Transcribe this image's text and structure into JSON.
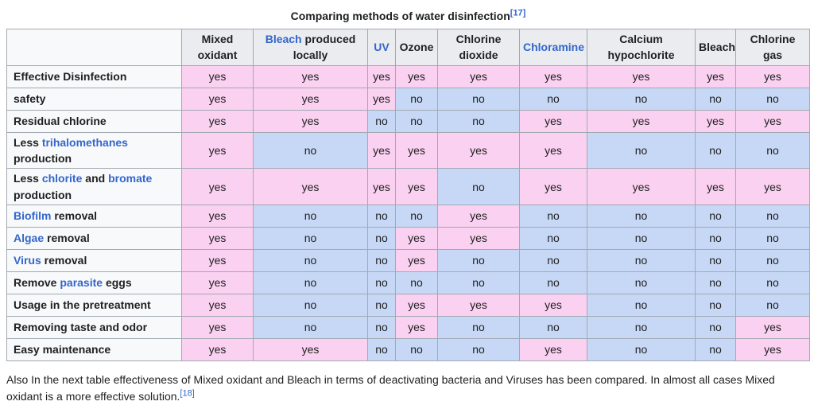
{
  "colors": {
    "yes_bg": "#fad1f0",
    "no_bg": "#c7d8f6",
    "header_bg": "#eaecf0",
    "label_bg": "#f8f9fa",
    "border": "#a2a9b1",
    "text": "#202122",
    "link": "#3366cc"
  },
  "title": {
    "segments": [
      {
        "t": "Comparing methods of water disinfection"
      },
      {
        "t": "[17]",
        "link": true,
        "sup": true
      }
    ]
  },
  "table": {
    "value_yes": "yes",
    "value_no": "no",
    "columns": [
      {
        "id": "mixed-oxidant",
        "segments": [
          {
            "t": "Mixed oxidant"
          }
        ]
      },
      {
        "id": "bleach-produced-locally",
        "segments": [
          {
            "t": "Bleach",
            "link": true
          },
          {
            "t": " produced locally"
          }
        ]
      },
      {
        "id": "uv",
        "segments": [
          {
            "t": "UV",
            "link": true
          }
        ]
      },
      {
        "id": "ozone",
        "segments": [
          {
            "t": "Ozone"
          }
        ]
      },
      {
        "id": "chlorine-dioxide",
        "segments": [
          {
            "t": "Chlorine dioxide"
          }
        ]
      },
      {
        "id": "chloramine",
        "segments": [
          {
            "t": "Chloramine",
            "link": true
          }
        ]
      },
      {
        "id": "calcium-hypochlorite",
        "segments": [
          {
            "t": "Calcium hypochlorite"
          }
        ]
      },
      {
        "id": "bleach",
        "segments": [
          {
            "t": "Bleach"
          }
        ]
      },
      {
        "id": "chlorine-gas",
        "segments": [
          {
            "t": "Chlorine gas"
          }
        ]
      }
    ],
    "rows": [
      {
        "id": "effective-disinfection",
        "label_segments": [
          {
            "t": "Effective Disinfection"
          }
        ],
        "values": [
          "yes",
          "yes",
          "yes",
          "yes",
          "yes",
          "yes",
          "yes",
          "yes",
          "yes"
        ]
      },
      {
        "id": "safety",
        "label_segments": [
          {
            "t": "safety"
          }
        ],
        "values": [
          "yes",
          "yes",
          "yes",
          "no",
          "no",
          "no",
          "no",
          "no",
          "no"
        ]
      },
      {
        "id": "residual-chlorine",
        "label_segments": [
          {
            "t": "Residual chlorine"
          }
        ],
        "values": [
          "yes",
          "yes",
          "no",
          "no",
          "no",
          "yes",
          "yes",
          "yes",
          "yes"
        ]
      },
      {
        "id": "less-trihalomethanes-production",
        "label_segments": [
          {
            "t": "Less "
          },
          {
            "t": "trihalomethanes",
            "link": true
          },
          {
            "t": " production"
          }
        ],
        "values": [
          "yes",
          "no",
          "yes",
          "yes",
          "yes",
          "yes",
          "no",
          "no",
          "no"
        ]
      },
      {
        "id": "less-chlorite-and-bromate-production",
        "label_segments": [
          {
            "t": "Less "
          },
          {
            "t": "chlorite",
            "link": true
          },
          {
            "t": " and "
          },
          {
            "t": "bromate",
            "link": true
          },
          {
            "t": " production"
          }
        ],
        "values": [
          "yes",
          "yes",
          "yes",
          "yes",
          "no",
          "yes",
          "yes",
          "yes",
          "yes"
        ]
      },
      {
        "id": "biofilm-removal",
        "label_segments": [
          {
            "t": "Biofilm",
            "link": true
          },
          {
            "t": " removal"
          }
        ],
        "values": [
          "yes",
          "no",
          "no",
          "no",
          "yes",
          "no",
          "no",
          "no",
          "no"
        ]
      },
      {
        "id": "algae-removal",
        "label_segments": [
          {
            "t": "Algae",
            "link": true
          },
          {
            "t": " removal"
          }
        ],
        "values": [
          "yes",
          "no",
          "no",
          "yes",
          "yes",
          "no",
          "no",
          "no",
          "no"
        ]
      },
      {
        "id": "virus-removal",
        "label_segments": [
          {
            "t": "Virus",
            "link": true
          },
          {
            "t": " removal"
          }
        ],
        "values": [
          "yes",
          "no",
          "no",
          "yes",
          "no",
          "no",
          "no",
          "no",
          "no"
        ]
      },
      {
        "id": "remove-parasite-eggs",
        "label_segments": [
          {
            "t": "Remove "
          },
          {
            "t": "parasite",
            "link": true
          },
          {
            "t": " eggs"
          }
        ],
        "values": [
          "yes",
          "no",
          "no",
          "no",
          "no",
          "no",
          "no",
          "no",
          "no"
        ]
      },
      {
        "id": "usage-in-the-pretreatment",
        "label_segments": [
          {
            "t": "Usage in the pretreatment"
          }
        ],
        "values": [
          "yes",
          "no",
          "no",
          "yes",
          "yes",
          "yes",
          "no",
          "no",
          "no"
        ]
      },
      {
        "id": "removing-taste-and-odor",
        "label_segments": [
          {
            "t": "Removing taste and odor"
          }
        ],
        "values": [
          "yes",
          "no",
          "no",
          "yes",
          "no",
          "no",
          "no",
          "no",
          "yes"
        ]
      },
      {
        "id": "easy-maintenance",
        "label_segments": [
          {
            "t": "Easy maintenance"
          }
        ],
        "values": [
          "yes",
          "yes",
          "no",
          "no",
          "no",
          "yes",
          "no",
          "no",
          "yes"
        ]
      }
    ]
  },
  "footer": {
    "segments": [
      {
        "t": "Also In the next table effectiveness of Mixed oxidant and Bleach in terms of deactivating bacteria and Viruses has been compared. In almost all cases Mixed oxidant is a more effective solution."
      },
      {
        "t": "[18]",
        "link": true,
        "sup": true
      }
    ]
  }
}
